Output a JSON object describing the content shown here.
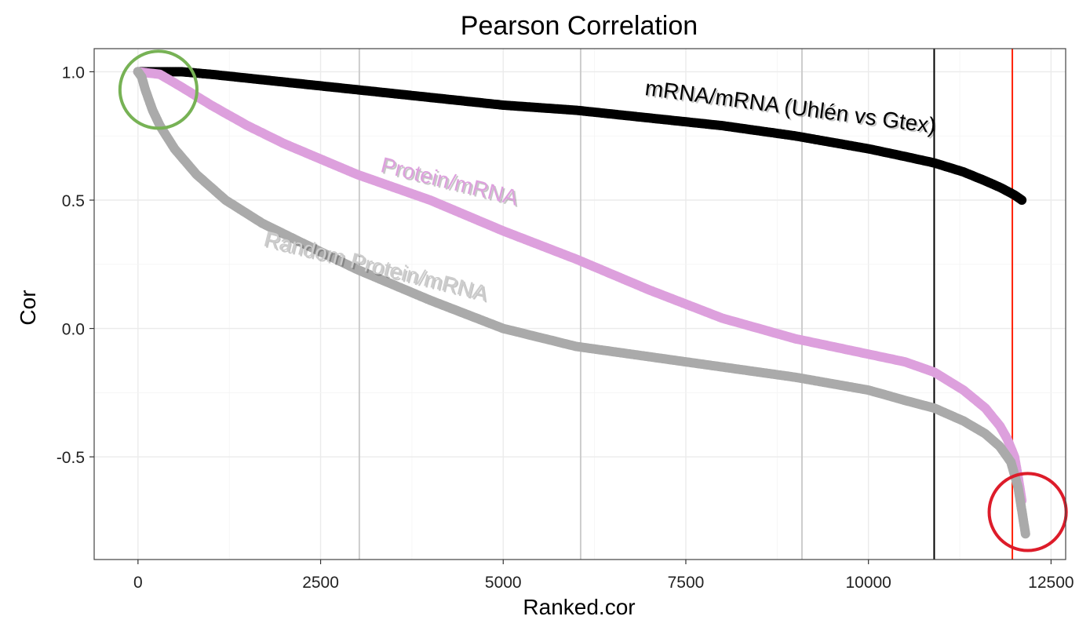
{
  "chart_data": {
    "type": "scatter",
    "title": "Pearson Correlation",
    "xlabel": "Ranked.cor",
    "ylabel": "Cor",
    "xlim": [
      -600,
      12700
    ],
    "ylim": [
      -0.9,
      1.09
    ],
    "xticks": [
      0,
      2500,
      5000,
      7500,
      10000,
      12500
    ],
    "xtick_labels": [
      "0",
      "2500",
      "5000",
      "7500",
      "10000",
      "12500"
    ],
    "yticks": [
      1.0,
      0.5,
      0.0,
      -0.5
    ],
    "ytick_labels": [
      "1.0",
      "0.5",
      "0.0",
      "-0.5"
    ],
    "grid": true,
    "series": [
      {
        "name": "mRNA/mRNA (Uhlén vs Gtex)",
        "color": "#000000",
        "x": [
          0,
          300,
          600,
          1000,
          2000,
          3000,
          4000,
          5000,
          6000,
          7000,
          8000,
          9000,
          10000,
          10500,
          10900,
          11300,
          11600,
          11800,
          12000,
          12100
        ],
        "y": [
          1.0,
          1.0,
          1.0,
          0.99,
          0.96,
          0.93,
          0.9,
          0.87,
          0.85,
          0.82,
          0.79,
          0.75,
          0.7,
          0.67,
          0.645,
          0.61,
          0.575,
          0.55,
          0.52,
          0.5
        ]
      },
      {
        "name": "Protein/mRNA",
        "color": "#dda0dd",
        "x": [
          0,
          300,
          600,
          1000,
          1500,
          2000,
          3000,
          4000,
          5000,
          6000,
          7000,
          8000,
          9000,
          9500,
          10000,
          10500,
          10900,
          11300,
          11600,
          11800,
          11900,
          12000,
          12050,
          12100
        ],
        "y": [
          1.0,
          0.99,
          0.94,
          0.87,
          0.79,
          0.72,
          0.6,
          0.5,
          0.38,
          0.27,
          0.15,
          0.04,
          -0.04,
          -0.07,
          -0.1,
          -0.13,
          -0.17,
          -0.24,
          -0.31,
          -0.38,
          -0.43,
          -0.5,
          -0.58,
          -0.67
        ]
      },
      {
        "name": "Random Protein/mRNA",
        "color": "#aaaaaa",
        "x": [
          0,
          50,
          100,
          200,
          300,
          500,
          800,
          1200,
          1700,
          2200,
          3000,
          4000,
          5000,
          6000,
          7000,
          8000,
          9000,
          10000,
          10500,
          10900,
          11300,
          11600,
          11800,
          11950,
          12050,
          12100,
          12150
        ],
        "y": [
          1.0,
          0.98,
          0.93,
          0.85,
          0.79,
          0.7,
          0.6,
          0.5,
          0.41,
          0.34,
          0.23,
          0.11,
          0.0,
          -0.07,
          -0.11,
          -0.15,
          -0.19,
          -0.24,
          -0.28,
          -0.31,
          -0.36,
          -0.41,
          -0.46,
          -0.52,
          -0.62,
          -0.71,
          -0.8
        ]
      }
    ],
    "vlines": [
      {
        "x": 3030,
        "color": "#cccccc"
      },
      {
        "x": 6060,
        "color": "#cccccc"
      },
      {
        "x": 9090,
        "color": "#cccccc"
      },
      {
        "x": 10900,
        "color": "#000000"
      },
      {
        "x": 11970,
        "color": "#ff2200"
      }
    ],
    "annotations": [
      {
        "text": "mRNA/mRNA (Uhlén vs Gtex)",
        "x": 8920,
        "y": 0.835,
        "angle": 7.5,
        "color": "#000000"
      },
      {
        "text": "Protein/mRNA",
        "x": 4240,
        "y": 0.545,
        "angle": 14,
        "color": "#dda0dd"
      },
      {
        "text": "Random Protein/mRNA",
        "x": 3230,
        "y": 0.215,
        "angle": 14,
        "color": "#cccccc"
      }
    ],
    "circles": [
      {
        "name": "top-left-highlight",
        "cx": 280,
        "cy": 0.93,
        "r": 0.15,
        "color": "#77b255"
      },
      {
        "name": "bottom-right-highlight",
        "cx": 12180,
        "cy": -0.715,
        "r": 0.15,
        "color": "#dd1c2a"
      }
    ]
  }
}
